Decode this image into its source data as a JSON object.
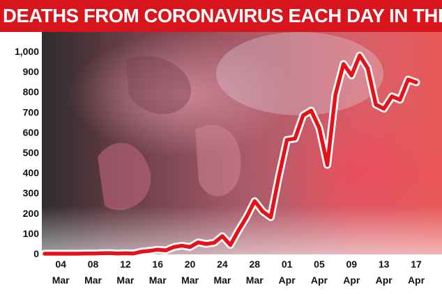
{
  "title": "DEATHS FROM CORONAVIRUS EACH DAY IN THE UK",
  "colors": {
    "banner": "#d8141c",
    "line": "#e5121a",
    "line_outline": "#ffffff",
    "text": "#111111"
  },
  "chart_data": {
    "type": "line",
    "title": "DEATHS FROM CORONAVIRUS EACH DAY IN THE UK",
    "xlabel": "",
    "ylabel": "",
    "ylim": [
      0,
      1000
    ],
    "yticks": [
      0,
      100,
      200,
      300,
      400,
      500,
      600,
      700,
      800,
      900,
      1000
    ],
    "ytick_labels": [
      "0",
      "100",
      "200",
      "300",
      "400",
      "500",
      "600",
      "700",
      "800",
      "900",
      "1,000"
    ],
    "xticks": [
      {
        "day": "04",
        "month": "Mar",
        "index": 2
      },
      {
        "day": "08",
        "month": "Mar",
        "index": 6
      },
      {
        "day": "12",
        "month": "Mar",
        "index": 10
      },
      {
        "day": "16",
        "month": "Mar",
        "index": 14
      },
      {
        "day": "20",
        "month": "Mar",
        "index": 18
      },
      {
        "day": "24",
        "month": "Mar",
        "index": 22
      },
      {
        "day": "28",
        "month": "Mar",
        "index": 26
      },
      {
        "day": "01",
        "month": "Apr",
        "index": 30
      },
      {
        "day": "05",
        "month": "Apr",
        "index": 34
      },
      {
        "day": "09",
        "month": "Apr",
        "index": 38
      },
      {
        "day": "13",
        "month": "Apr",
        "index": 42
      },
      {
        "day": "17",
        "month": "Apr",
        "index": 46
      }
    ],
    "x": [
      "02 Mar",
      "03 Mar",
      "04 Mar",
      "05 Mar",
      "06 Mar",
      "07 Mar",
      "08 Mar",
      "09 Mar",
      "10 Mar",
      "11 Mar",
      "12 Mar",
      "13 Mar",
      "14 Mar",
      "15 Mar",
      "16 Mar",
      "17 Mar",
      "18 Mar",
      "19 Mar",
      "20 Mar",
      "21 Mar",
      "22 Mar",
      "23 Mar",
      "24 Mar",
      "25 Mar",
      "26 Mar",
      "27 Mar",
      "28 Mar",
      "29 Mar",
      "30 Mar",
      "31 Mar",
      "01 Apr",
      "02 Apr",
      "03 Apr",
      "04 Apr",
      "05 Apr",
      "06 Apr",
      "07 Apr",
      "08 Apr",
      "09 Apr",
      "10 Apr",
      "11 Apr",
      "12 Apr",
      "13 Apr",
      "14 Apr",
      "15 Apr",
      "16 Apr",
      "17 Apr"
    ],
    "series": [
      {
        "values": [
          0,
          0,
          0,
          0,
          0,
          1,
          1,
          2,
          3,
          1,
          2,
          1,
          10,
          14,
          20,
          16,
          33,
          40,
          33,
          56,
          48,
          54,
          87,
          43,
          115,
          181,
          260,
          209,
          180,
          381,
          563,
          569,
          684,
          708,
          621,
          439,
          786,
          938,
          881,
          980,
          917,
          737,
          717,
          778,
          761,
          861,
          847
        ]
      }
    ],
    "grid": false
  }
}
